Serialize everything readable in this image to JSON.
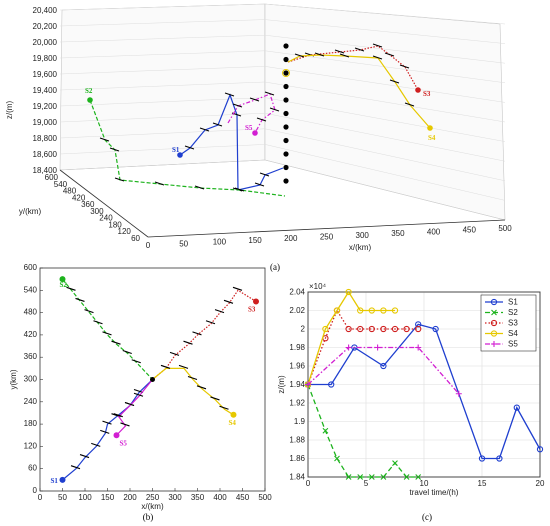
{
  "captions": {
    "a": "(a)",
    "b": "(b)",
    "c": "(c)"
  },
  "chart_data": [
    {
      "type": "line",
      "panel": "(a)",
      "z_ticks": [
        "20,400",
        "20,200",
        "20,000",
        "19,800",
        "19,600",
        "19,400",
        "19,200",
        "19,000",
        "18,800",
        "18,600",
        "18,400"
      ],
      "z_label": "z/(m)",
      "y_ticks": [
        "600",
        "540",
        "480",
        "420",
        "360",
        "300",
        "240",
        "180",
        "120",
        "60"
      ],
      "y_label": "y/(km)",
      "x_ticks": [
        "0",
        "50",
        "100",
        "150",
        "200",
        "250",
        "300",
        "350",
        "400",
        "450",
        "500"
      ],
      "x_label": "x/(km)",
      "series_labels": [
        "S1",
        "S2",
        "S3",
        "S4",
        "S5"
      ]
    },
    {
      "type": "line",
      "panel": "(b)",
      "xlabel": "x/(km)",
      "ylabel": "y(km)",
      "xlim": [
        0,
        500
      ],
      "ylim": [
        0,
        600
      ],
      "xticks": [
        0,
        50,
        100,
        150,
        200,
        250,
        300,
        350,
        400,
        450,
        500
      ],
      "yticks": [
        0,
        60,
        120,
        180,
        240,
        300,
        360,
        420,
        480,
        540,
        600
      ],
      "series": [
        {
          "name": "S1",
          "color": "#1f3fcf",
          "points": [
            [
              50,
              30
            ],
            [
              80,
              60
            ],
            [
              100,
              90
            ],
            [
              125,
              120
            ],
            [
              145,
              155
            ],
            [
              150,
              180
            ],
            [
              170,
              200
            ],
            [
              200,
              230
            ],
            [
              220,
              265
            ],
            [
              250,
              300
            ]
          ]
        },
        {
          "name": "S2",
          "color": "#1db31d",
          "points": [
            [
              50,
              570
            ],
            [
              70,
              540
            ],
            [
              90,
              510
            ],
            [
              110,
              480
            ],
            [
              130,
              450
            ],
            [
              150,
              420
            ],
            [
              170,
              395
            ],
            [
              195,
              370
            ],
            [
              215,
              345
            ],
            [
              250,
              300
            ]
          ]
        },
        {
          "name": "S3",
          "color": "#cf1f1f",
          "points": [
            [
              250,
              300
            ],
            [
              280,
              330
            ],
            [
              300,
              365
            ],
            [
              330,
              395
            ],
            [
              350,
              420
            ],
            [
              380,
              450
            ],
            [
              400,
              480
            ],
            [
              420,
              505
            ],
            [
              440,
              540
            ],
            [
              480,
              510
            ]
          ]
        },
        {
          "name": "S4",
          "color": "#e6c800",
          "points": [
            [
              250,
              300
            ],
            [
              280,
              330
            ],
            [
              320,
              330
            ],
            [
              340,
              300
            ],
            [
              360,
              275
            ],
            [
              390,
              245
            ],
            [
              410,
              220
            ],
            [
              430,
              205
            ]
          ]
        },
        {
          "name": "S5",
          "color": "#d21fd2",
          "points": [
            [
              170,
              150
            ],
            [
              190,
              175
            ],
            [
              175,
              200
            ],
            [
              200,
              230
            ],
            [
              220,
              255
            ],
            [
              250,
              300
            ]
          ]
        }
      ],
      "labels": [
        "S1",
        "S2",
        "S3",
        "S4",
        "S5"
      ]
    },
    {
      "type": "line",
      "panel": "(c)",
      "xlabel": "travel time/(h)",
      "ylabel": "z/(m)",
      "multiplier": "×10⁴",
      "xlim": [
        0,
        20
      ],
      "ylim": [
        1.84,
        2.04
      ],
      "xticks": [
        0,
        5,
        10,
        15,
        20
      ],
      "yticks": [
        1.84,
        1.86,
        1.88,
        1.9,
        1.92,
        1.94,
        1.96,
        1.98,
        2.0,
        2.02,
        2.04
      ],
      "ytick_labels": [
        "1.84",
        "1.86",
        "1.88",
        "1.9",
        "1.92",
        "1.94",
        "1.96",
        "1.98",
        "2",
        "2.02",
        "2.04"
      ],
      "legend": "top-right",
      "series": [
        {
          "name": "S1",
          "color": "#1f3fcf",
          "style": "solid",
          "marker": "o",
          "x": [
            0,
            2,
            4,
            6.5,
            9.5,
            11,
            15,
            16.5,
            18,
            20
          ],
          "y": [
            1.94,
            1.94,
            1.98,
            1.96,
            2.005,
            2.0,
            1.86,
            1.86,
            1.915,
            1.87
          ]
        },
        {
          "name": "S2",
          "color": "#1db31d",
          "style": "dash",
          "marker": "x",
          "x": [
            0,
            1.5,
            2.5,
            3.5,
            4.5,
            5.5,
            6.5,
            7.5,
            8.5,
            9.5
          ],
          "y": [
            1.94,
            1.89,
            1.86,
            1.84,
            1.84,
            1.84,
            1.84,
            1.855,
            1.84,
            1.84
          ]
        },
        {
          "name": "S3",
          "color": "#cf1f1f",
          "style": "dot",
          "marker": "o",
          "x": [
            0,
            1.5,
            2.5,
            3.5,
            4.5,
            5.5,
            6.5,
            7.5,
            8.5,
            9.5
          ],
          "y": [
            1.94,
            1.99,
            2.02,
            2.0,
            2.0,
            2.0,
            2.0,
            2.0,
            2.0,
            2.0
          ]
        },
        {
          "name": "S4",
          "color": "#e6c800",
          "style": "solid",
          "marker": "o",
          "x": [
            0,
            1.5,
            2.5,
            3.5,
            4.5,
            5.5,
            6.5,
            7.5
          ],
          "y": [
            1.94,
            2.0,
            2.02,
            2.04,
            2.02,
            2.02,
            2.02,
            2.02
          ]
        },
        {
          "name": "S5",
          "color": "#d21fd2",
          "style": "dashdot",
          "marker": "+",
          "x": [
            0,
            3.5,
            6,
            9.5,
            13
          ],
          "y": [
            1.94,
            1.98,
            1.98,
            1.98,
            1.93
          ]
        }
      ]
    }
  ]
}
